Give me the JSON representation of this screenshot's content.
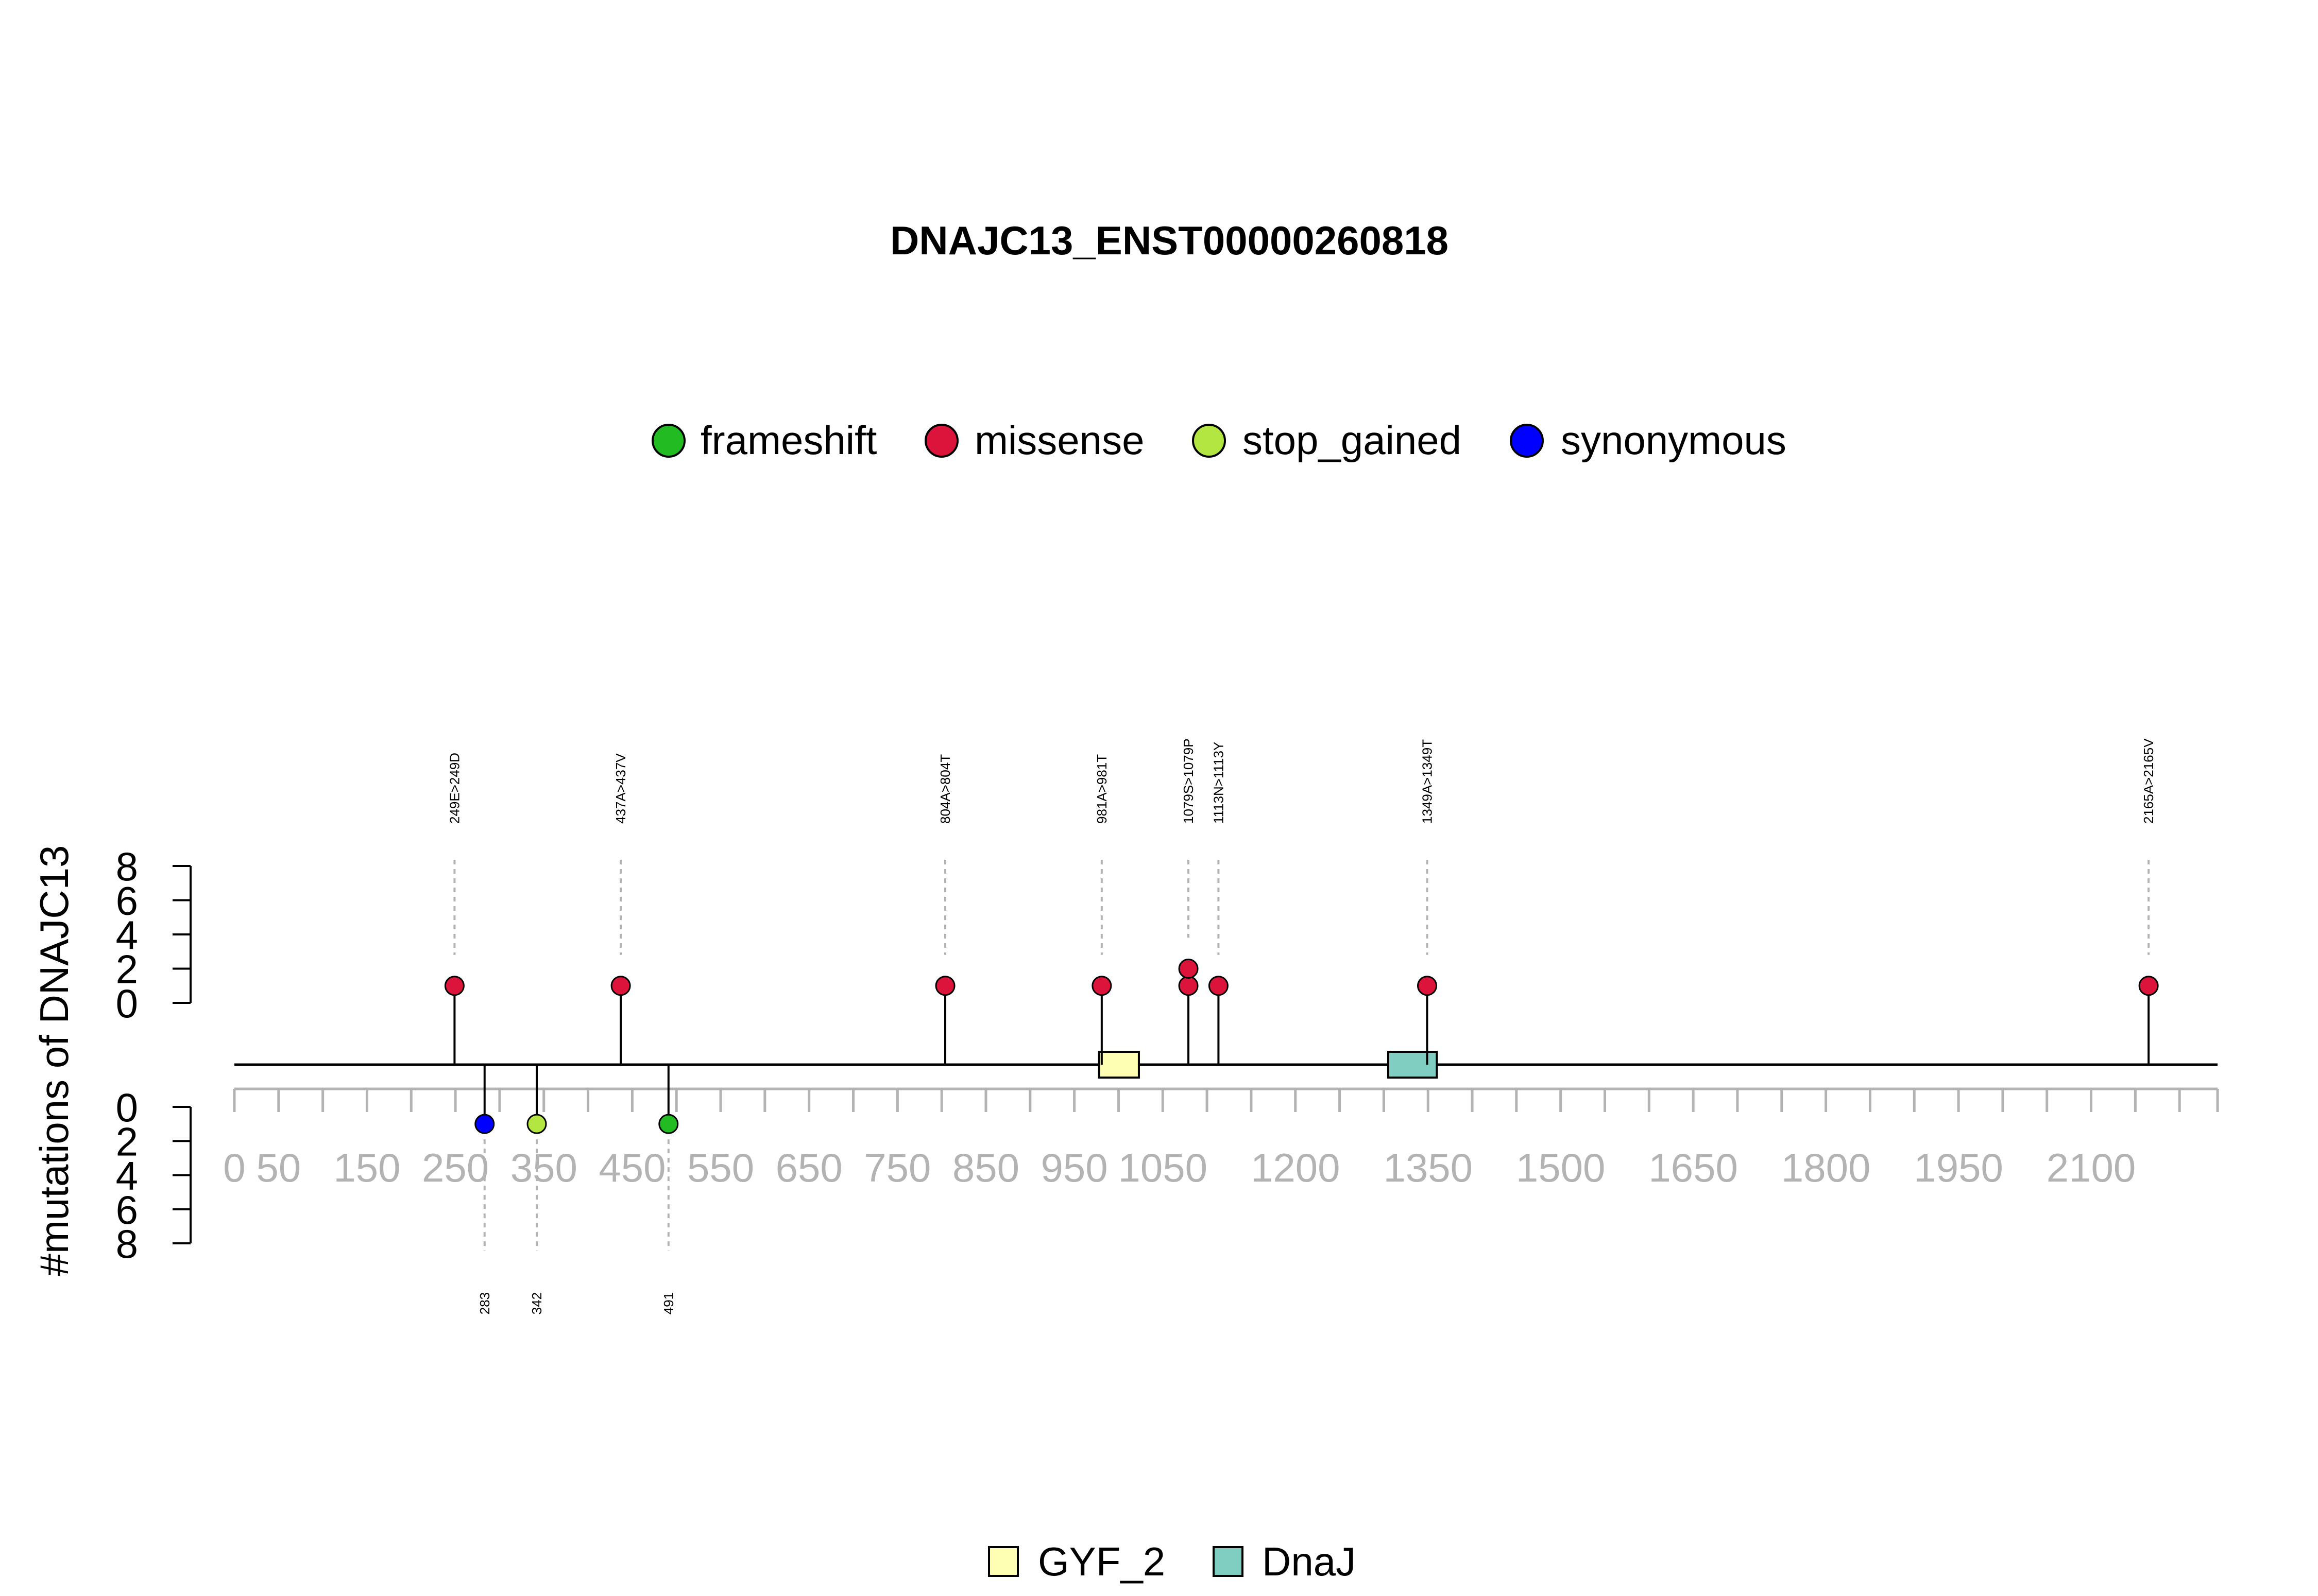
{
  "chart_data": {
    "type": "lollipop",
    "title": "DNAJC13_ENST00000260818",
    "ylabel": "#mutations of DNAJC13",
    "protein_length": 2243,
    "xlim": [
      0,
      2243
    ],
    "x_ticks": [
      0,
      50,
      150,
      250,
      350,
      450,
      550,
      650,
      750,
      850,
      950,
      1050,
      1200,
      1350,
      1500,
      1650,
      1800,
      1950,
      2100
    ],
    "y_ticks_top": [
      0,
      2,
      4,
      6,
      8
    ],
    "y_ticks_bottom": [
      0,
      2,
      4,
      6,
      8
    ],
    "ylim": [
      0,
      8
    ],
    "mutation_types": [
      {
        "name": "frameshift",
        "color": "#22bb22"
      },
      {
        "name": "missense",
        "color": "#dc143c"
      },
      {
        "name": "stop_gained",
        "color": "#b3e640"
      },
      {
        "name": "synonymous",
        "color": "#0000ff"
      }
    ],
    "top_mutations": [
      {
        "label": "249E>249D",
        "position": 249,
        "type": "missense",
        "count": 1
      },
      {
        "label": "437A>437V",
        "position": 437,
        "type": "missense",
        "count": 1
      },
      {
        "label": "804A>804T",
        "position": 804,
        "type": "missense",
        "count": 1
      },
      {
        "label": "981A>981T",
        "position": 981,
        "type": "missense",
        "count": 1
      },
      {
        "label": "1079S>1079P",
        "position": 1079,
        "type": "missense",
        "count": 2
      },
      {
        "label": "1113N>1113Y",
        "position": 1113,
        "type": "missense",
        "count": 1
      },
      {
        "label": "1349A>1349T",
        "position": 1349,
        "type": "missense",
        "count": 1
      },
      {
        "label": "2165A>2165V",
        "position": 2165,
        "type": "missense",
        "count": 1
      }
    ],
    "bottom_mutations": [
      {
        "label": "283",
        "position": 283,
        "type": "synonymous",
        "count": 1
      },
      {
        "label": "342",
        "position": 342,
        "type": "stop_gained",
        "count": 1
      },
      {
        "label": "491",
        "position": 491,
        "type": "frameshift",
        "count": 1
      }
    ],
    "domains": [
      {
        "name": "GYF_2",
        "start": 978,
        "end": 1023,
        "color": "#ffffb3"
      },
      {
        "name": "DnaJ",
        "start": 1305,
        "end": 1360,
        "color": "#80cdc1"
      }
    ]
  }
}
